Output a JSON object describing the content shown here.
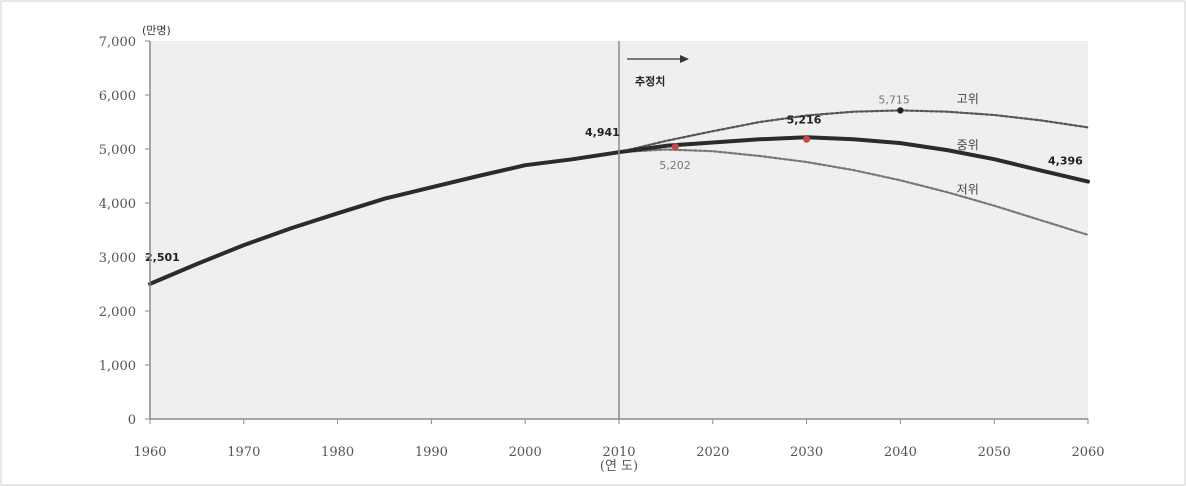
{
  "chart_data": {
    "type": "line",
    "unit": "(만명)",
    "x_ticks": [
      "1960",
      "1970",
      "1980",
      "1990",
      "2000",
      "2010",
      "2020",
      "2030",
      "2040",
      "2050",
      "2060"
    ],
    "x_sublabel": "(연 도)",
    "y_ticks": [
      "0",
      "1,000",
      "2,000",
      "3,000",
      "4,000",
      "5,000",
      "6,000",
      "7,000"
    ],
    "xlim": [
      1960,
      2060
    ],
    "ylim": [
      0,
      7000
    ],
    "grid": false,
    "projection_start": 2010,
    "projection_label": "추정치",
    "series": [
      {
        "name": "중위",
        "color": "#2b2b2b",
        "points": [
          [
            1960,
            2501
          ],
          [
            1965,
            2870
          ],
          [
            1970,
            3220
          ],
          [
            1975,
            3530
          ],
          [
            1980,
            3810
          ],
          [
            1985,
            4080
          ],
          [
            1990,
            4290
          ],
          [
            1995,
            4500
          ],
          [
            2000,
            4700
          ],
          [
            2005,
            4810
          ],
          [
            2010,
            4941
          ],
          [
            2015,
            5060
          ],
          [
            2020,
            5120
          ],
          [
            2025,
            5180
          ],
          [
            2030,
            5216
          ],
          [
            2035,
            5180
          ],
          [
            2040,
            5109
          ],
          [
            2045,
            4980
          ],
          [
            2050,
            4812
          ],
          [
            2055,
            4600
          ],
          [
            2060,
            4396
          ]
        ]
      },
      {
        "name": "고위",
        "color": "#555555",
        "points": [
          [
            2010,
            4941
          ],
          [
            2015,
            5150
          ],
          [
            2020,
            5330
          ],
          [
            2025,
            5500
          ],
          [
            2030,
            5620
          ],
          [
            2035,
            5690
          ],
          [
            2040,
            5715
          ],
          [
            2045,
            5690
          ],
          [
            2050,
            5630
          ],
          [
            2055,
            5530
          ],
          [
            2060,
            5400
          ]
        ]
      },
      {
        "name": "저위",
        "color": "#777777",
        "points": [
          [
            2010,
            4941
          ],
          [
            2015,
            4990
          ],
          [
            2020,
            4960
          ],
          [
            2025,
            4870
          ],
          [
            2030,
            4760
          ],
          [
            2035,
            4610
          ],
          [
            2040,
            4420
          ],
          [
            2045,
            4200
          ],
          [
            2050,
            3950
          ],
          [
            2055,
            3680
          ],
          [
            2060,
            3410
          ]
        ]
      }
    ],
    "data_labels": [
      {
        "text": "2,501",
        "x": 1960,
        "y": 2501,
        "style": "bold"
      },
      {
        "text": "4,941",
        "x": 2010,
        "y": 4941,
        "style": "bold"
      },
      {
        "text": "5,202",
        "x": 2016,
        "y": 5000,
        "style": "light"
      },
      {
        "text": "5,216",
        "x": 2030,
        "y": 5216,
        "style": "bold"
      },
      {
        "text": "5,715",
        "x": 2040,
        "y": 5715,
        "style": "light"
      },
      {
        "text": "4,396",
        "x": 2060,
        "y": 4396,
        "style": "bold"
      }
    ]
  }
}
